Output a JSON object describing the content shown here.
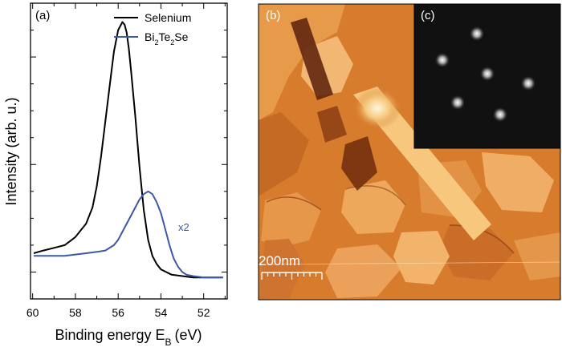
{
  "panels": {
    "a": {
      "label": "(a)"
    },
    "b": {
      "label": "(b)",
      "scale_bar_text": "200nm"
    },
    "c": {
      "label": "(c)"
    }
  },
  "colors": {
    "selenium": "#000000",
    "bi2te2se": "#3c58a6",
    "stm_dark": "#8a3a12",
    "stm_mid": "#d77b2c",
    "stm_light": "#f6c77d",
    "stm_highlight": "#fff6e0",
    "leed_background": "#111111",
    "leed_spot": "#e8e8e8"
  },
  "chart_data": [
    {
      "panel": "(a)",
      "type": "line",
      "title": "",
      "xlabel": "Binding energy E",
      "xlabel_subscript": "B",
      "xlabel_unit": "(eV)",
      "ylabel": "Intensity (arb. u.)",
      "xlim": [
        60.1,
        50.9
      ],
      "x_reversed": true,
      "xticks": [
        60,
        58,
        56,
        54,
        52
      ],
      "ylim": [
        0,
        1.1
      ],
      "y_tick_labels": "none",
      "grid": false,
      "legend_position": "top-right",
      "annotations": [
        {
          "text": "x2",
          "x": 53.1,
          "y": 0.33,
          "color": "#3c58a6"
        }
      ],
      "series": [
        {
          "name": "Selenium",
          "legend_html": "Selenium",
          "color": "#000000",
          "x": [
            59.95,
            59.5,
            59.0,
            58.5,
            58.0,
            57.5,
            57.2,
            57.0,
            56.8,
            56.6,
            56.4,
            56.2,
            56.0,
            55.8,
            55.7,
            55.6,
            55.5,
            55.4,
            55.2,
            55.0,
            54.8,
            54.6,
            54.4,
            54.2,
            54.0,
            53.5,
            53.0,
            52.5,
            52.0,
            51.5,
            51.1
          ],
          "y": [
            0.17,
            0.18,
            0.19,
            0.2,
            0.23,
            0.28,
            0.34,
            0.42,
            0.53,
            0.66,
            0.79,
            0.92,
            1.0,
            1.03,
            1.02,
            0.99,
            0.93,
            0.85,
            0.68,
            0.49,
            0.33,
            0.22,
            0.16,
            0.13,
            0.11,
            0.09,
            0.085,
            0.08,
            0.08,
            0.08,
            0.08
          ]
        },
        {
          "name": "Bi2Te2Se",
          "legend_html": "Bi<tspan baseline-shift=\"sub\" font-size=\"9\">2</tspan>Te<tspan baseline-shift=\"sub\" font-size=\"9\">2</tspan>Se",
          "color": "#3c58a6",
          "x": [
            59.95,
            59.5,
            59.0,
            58.5,
            58.0,
            57.5,
            57.0,
            56.6,
            56.2,
            56.0,
            55.8,
            55.6,
            55.4,
            55.2,
            55.0,
            54.8,
            54.6,
            54.4,
            54.2,
            54.0,
            53.8,
            53.6,
            53.4,
            53.2,
            53.0,
            52.8,
            52.5,
            52.0,
            51.5,
            51.1
          ],
          "y": [
            0.16,
            0.16,
            0.16,
            0.16,
            0.165,
            0.17,
            0.175,
            0.18,
            0.2,
            0.22,
            0.25,
            0.28,
            0.31,
            0.34,
            0.37,
            0.39,
            0.4,
            0.39,
            0.36,
            0.32,
            0.26,
            0.2,
            0.15,
            0.12,
            0.1,
            0.09,
            0.085,
            0.08,
            0.08,
            0.08
          ]
        }
      ]
    }
  ]
}
